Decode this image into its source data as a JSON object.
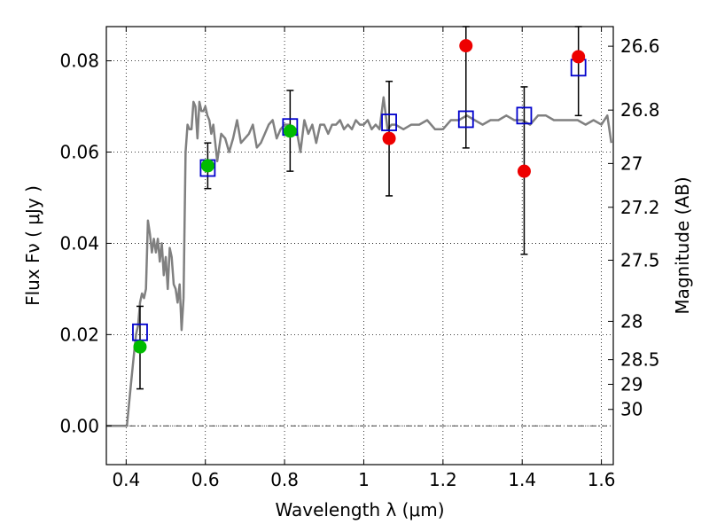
{
  "chart_data": {
    "type": "scatter",
    "xlabel": "Wavelength  λ (μm)",
    "ylabel": "Flux  Fν  ( μJy )",
    "y2label": "Magnitude (AB)",
    "xlim": [
      0.35,
      1.63
    ],
    "ylim": [
      -0.0085,
      0.0875
    ],
    "grid": true,
    "x_ticks": [
      0.4,
      0.6,
      0.8,
      1.0,
      1.2,
      1.4,
      1.6
    ],
    "x_tick_labels": [
      "0.4",
      "0.6",
      "0.8",
      "1",
      "1.2",
      "1.4",
      "1.6"
    ],
    "y_ticks": [
      0.0,
      0.02,
      0.04,
      0.06,
      0.08
    ],
    "y_tick_labels": [
      "0.00",
      "0.02",
      "0.04",
      "0.06",
      "0.08"
    ],
    "mag_ticks": [
      {
        "label": "26.6",
        "flux": 0.0832
      },
      {
        "label": "26.8",
        "flux": 0.0692
      },
      {
        "label": "27",
        "flux": 0.0575
      },
      {
        "label": "27.2",
        "flux": 0.0479
      },
      {
        "label": "27.5",
        "flux": 0.0363
      },
      {
        "label": "28",
        "flux": 0.0229
      },
      {
        "label": "28.5",
        "flux": 0.0145
      },
      {
        "label": "29",
        "flux": 0.0091
      },
      {
        "label": "30",
        "flux": 0.0036
      }
    ],
    "colors": {
      "sed": "#808080",
      "model_box": "#0000cc",
      "green": "#00bb00",
      "red": "#ee0000",
      "errorbar": "#000000",
      "grid": "#000000"
    },
    "sed_model": {
      "x": [
        0.35,
        0.402,
        0.412,
        0.42,
        0.425,
        0.43,
        0.435,
        0.44,
        0.445,
        0.45,
        0.455,
        0.46,
        0.465,
        0.47,
        0.475,
        0.48,
        0.485,
        0.49,
        0.495,
        0.5,
        0.505,
        0.51,
        0.515,
        0.52,
        0.525,
        0.53,
        0.535,
        0.54,
        0.545,
        0.55,
        0.555,
        0.56,
        0.565,
        0.57,
        0.575,
        0.58,
        0.585,
        0.59,
        0.595,
        0.6,
        0.605,
        0.61,
        0.615,
        0.62,
        0.63,
        0.64,
        0.65,
        0.66,
        0.67,
        0.68,
        0.69,
        0.7,
        0.71,
        0.72,
        0.73,
        0.74,
        0.75,
        0.76,
        0.77,
        0.78,
        0.79,
        0.8,
        0.81,
        0.82,
        0.83,
        0.84,
        0.85,
        0.86,
        0.87,
        0.88,
        0.89,
        0.9,
        0.91,
        0.92,
        0.93,
        0.94,
        0.95,
        0.96,
        0.97,
        0.98,
        0.99,
        1.0,
        1.01,
        1.02,
        1.03,
        1.04,
        1.05,
        1.06,
        1.07,
        1.08,
        1.1,
        1.12,
        1.14,
        1.16,
        1.18,
        1.2,
        1.22,
        1.24,
        1.26,
        1.28,
        1.3,
        1.32,
        1.34,
        1.36,
        1.38,
        1.4,
        1.42,
        1.44,
        1.46,
        1.48,
        1.5,
        1.52,
        1.54,
        1.56,
        1.58,
        1.6,
        1.615,
        1.625
      ],
      "y": [
        0.0,
        0.0,
        0.009,
        0.016,
        0.02,
        0.022,
        0.027,
        0.029,
        0.028,
        0.03,
        0.045,
        0.042,
        0.038,
        0.041,
        0.038,
        0.041,
        0.036,
        0.04,
        0.033,
        0.037,
        0.03,
        0.039,
        0.037,
        0.031,
        0.03,
        0.027,
        0.031,
        0.021,
        0.028,
        0.06,
        0.066,
        0.065,
        0.065,
        0.071,
        0.07,
        0.063,
        0.071,
        0.069,
        0.069,
        0.07,
        0.068,
        0.067,
        0.064,
        0.066,
        0.058,
        0.064,
        0.063,
        0.06,
        0.063,
        0.067,
        0.062,
        0.063,
        0.064,
        0.066,
        0.061,
        0.062,
        0.064,
        0.066,
        0.067,
        0.063,
        0.065,
        0.066,
        0.066,
        0.064,
        0.065,
        0.06,
        0.067,
        0.064,
        0.066,
        0.062,
        0.066,
        0.066,
        0.064,
        0.066,
        0.066,
        0.067,
        0.065,
        0.066,
        0.065,
        0.067,
        0.066,
        0.066,
        0.067,
        0.065,
        0.066,
        0.065,
        0.072,
        0.065,
        0.066,
        0.066,
        0.065,
        0.066,
        0.066,
        0.067,
        0.065,
        0.065,
        0.067,
        0.067,
        0.068,
        0.067,
        0.066,
        0.067,
        0.067,
        0.068,
        0.067,
        0.067,
        0.066,
        0.068,
        0.068,
        0.067,
        0.067,
        0.067,
        0.067,
        0.066,
        0.067,
        0.066,
        0.068,
        0.062
      ]
    },
    "model_points": [
      {
        "x": 0.435,
        "y": 0.0205
      },
      {
        "x": 0.606,
        "y": 0.0565
      },
      {
        "x": 0.814,
        "y": 0.0655
      },
      {
        "x": 1.064,
        "y": 0.0665
      },
      {
        "x": 1.258,
        "y": 0.0672
      },
      {
        "x": 1.405,
        "y": 0.068
      },
      {
        "x": 1.542,
        "y": 0.0785
      }
    ],
    "observed": [
      {
        "x": 0.435,
        "y": 0.0173,
        "err_low": 0.0081,
        "err_high": 0.0262,
        "color": "green"
      },
      {
        "x": 0.606,
        "y": 0.057,
        "err_low": 0.052,
        "err_high": 0.062,
        "color": "green"
      },
      {
        "x": 0.814,
        "y": 0.0646,
        "err_low": 0.0558,
        "err_high": 0.0735,
        "color": "green"
      },
      {
        "x": 1.064,
        "y": 0.063,
        "err_low": 0.0504,
        "err_high": 0.0755,
        "color": "red"
      },
      {
        "x": 1.258,
        "y": 0.0833,
        "err_low": 0.0609,
        "err_high": 0.0875,
        "color": "red"
      },
      {
        "x": 1.405,
        "y": 0.0558,
        "err_low": 0.0376,
        "err_high": 0.0743,
        "color": "red"
      },
      {
        "x": 1.542,
        "y": 0.0809,
        "err_low": 0.068,
        "err_high": 0.0875,
        "color": "red"
      }
    ]
  }
}
